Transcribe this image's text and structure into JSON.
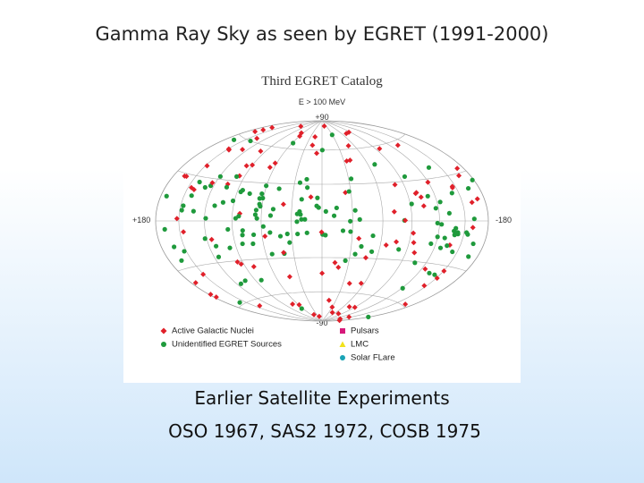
{
  "title": "Gamma Ray Sky as seen by EGRET (1991-2000)",
  "figure": {
    "title": "Third EGRET Catalog",
    "subtitle": "E > 100 MeV",
    "labels": {
      "top": "+90",
      "bottom": "-90",
      "left": "+180",
      "right": "-180"
    },
    "legend": [
      {
        "label": "Active Galactic Nuclei",
        "color": "#e0202a"
      },
      {
        "label": "Unidentified EGRET Sources",
        "color": "#1f9a3c"
      },
      {
        "label": "Pulsars",
        "color": "#d6197a"
      },
      {
        "label": "LMC",
        "color": "#f2e21a"
      },
      {
        "label": "Solar FLare",
        "color": "#1aa3b5"
      }
    ]
  },
  "caption": [
    "Earlier Satellite Experiments",
    "OSO 1967, SAS2 1972, COSB 1975"
  ]
}
